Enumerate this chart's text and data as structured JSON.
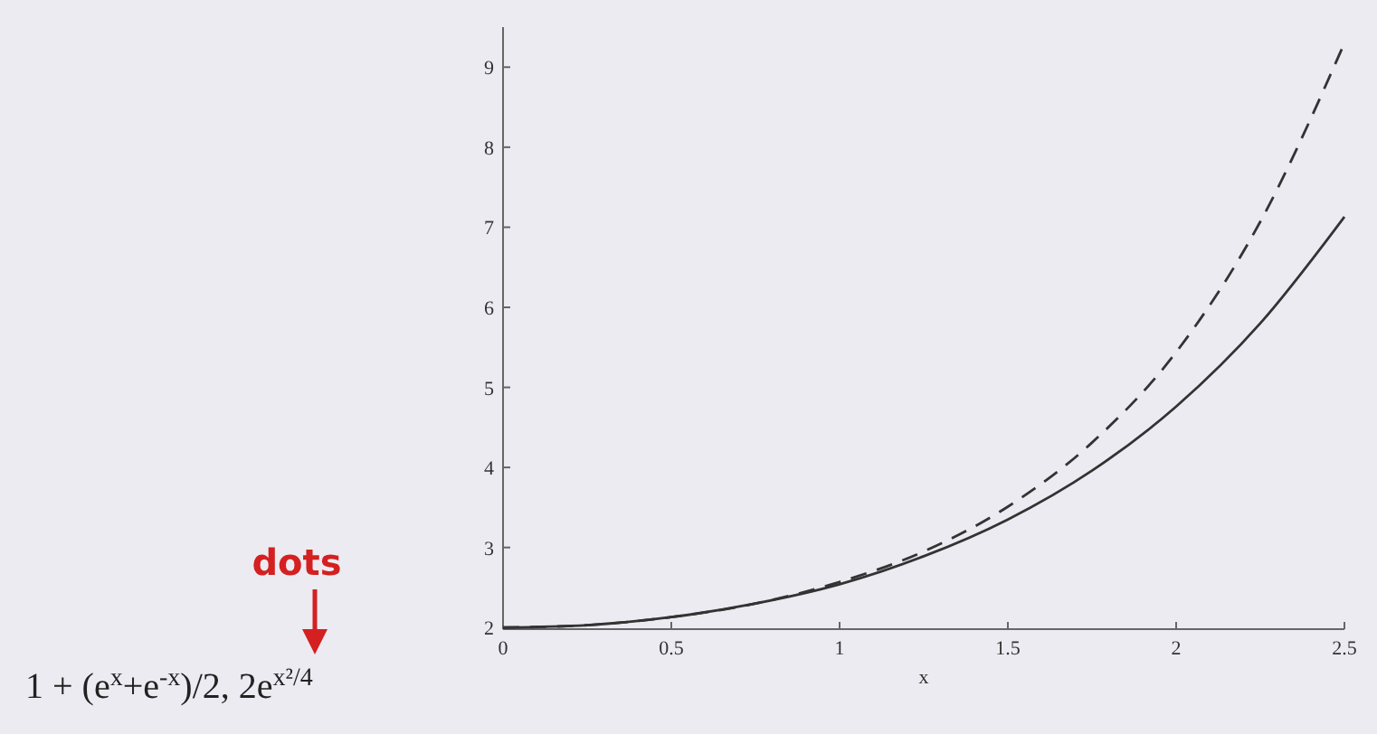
{
  "chart_data": {
    "type": "line",
    "xlabel": "x",
    "x": [
      0,
      0.25,
      0.5,
      0.75,
      1,
      1.25,
      1.5,
      1.75,
      2,
      2.25,
      2.5
    ],
    "series": [
      {
        "color": "#333333",
        "line_style": "solid",
        "values": [
          2,
          2.03,
          2.13,
          2.3,
          2.54,
          2.89,
          3.35,
          3.96,
          4.76,
          5.8,
          7.13
        ]
      },
      {
        "color": "#333333",
        "line_style": "dashed",
        "values": [
          2,
          2.03,
          2.13,
          2.3,
          2.57,
          2.95,
          3.51,
          4.31,
          5.44,
          7.07,
          9.3
        ]
      }
    ],
    "xlim": [
      0,
      2.5
    ],
    "xticks": [
      0,
      0.5,
      1,
      1.5,
      2,
      2.5
    ],
    "ylim": [
      1.98,
      9.5
    ],
    "yticks": [
      2,
      3,
      4,
      5,
      6,
      7,
      8,
      9
    ],
    "grid": false,
    "annotations": [
      "1 + (e$^{x}$+e$^{-x}$)/2, 2e$^{x²/4}$",
      "dots"
    ]
  }
}
